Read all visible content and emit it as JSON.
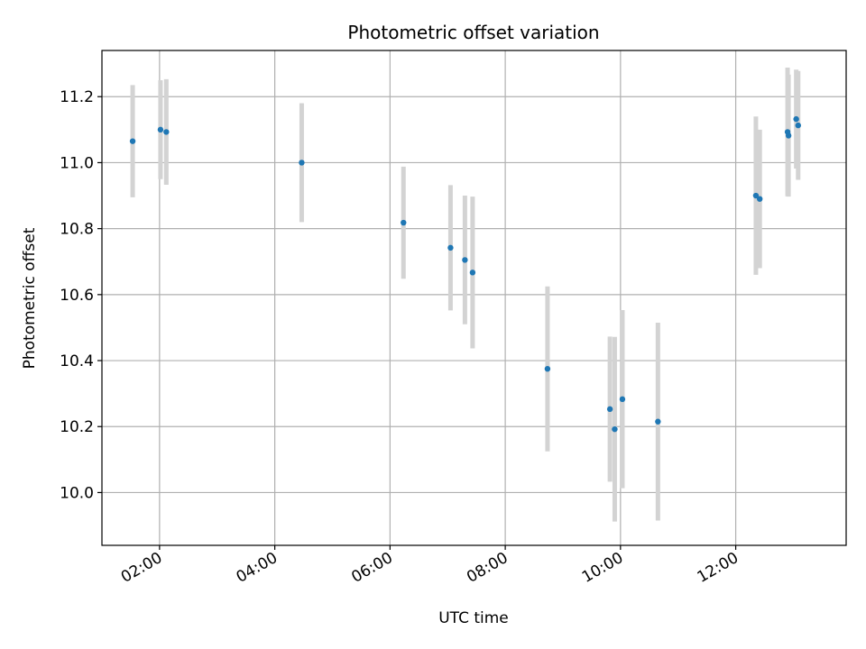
{
  "chart_data": {
    "type": "scatter",
    "title": "Photometric offset variation",
    "xlabel": "UTC time",
    "ylabel": "Photometric offset",
    "xlim": [
      "01:00",
      "13:55"
    ],
    "ylim": [
      9.84,
      11.34
    ],
    "x_ticks": [
      "02:00",
      "04:00",
      "06:00",
      "08:00",
      "10:00",
      "12:00"
    ],
    "y_ticks": [
      "10.0",
      "10.2",
      "10.4",
      "10.6",
      "10.8",
      "11.0",
      "11.2"
    ],
    "grid": true,
    "error_bar_color": "#d3d3d3",
    "marker_color": "#1f77b4",
    "points": [
      {
        "x": "01:32",
        "y": 11.065,
        "err": 0.17
      },
      {
        "x": "02:01",
        "y": 11.1,
        "err": 0.15
      },
      {
        "x": "02:07",
        "y": 11.093,
        "err": 0.16
      },
      {
        "x": "04:28",
        "y": 11.0,
        "err": 0.18
      },
      {
        "x": "06:14",
        "y": 10.818,
        "err": 0.17
      },
      {
        "x": "07:03",
        "y": 10.742,
        "err": 0.19
      },
      {
        "x": "07:18",
        "y": 10.705,
        "err": 0.195
      },
      {
        "x": "07:26",
        "y": 10.667,
        "err": 0.23
      },
      {
        "x": "08:44",
        "y": 10.375,
        "err": 0.25
      },
      {
        "x": "09:49",
        "y": 10.253,
        "err": 0.22
      },
      {
        "x": "09:54",
        "y": 10.192,
        "err": 0.28
      },
      {
        "x": "10:02",
        "y": 10.283,
        "err": 0.27
      },
      {
        "x": "10:39",
        "y": 10.215,
        "err": 0.3
      },
      {
        "x": "12:21",
        "y": 10.9,
        "err": 0.24
      },
      {
        "x": "12:25",
        "y": 10.89,
        "err": 0.21
      },
      {
        "x": "12:54",
        "y": 11.093,
        "err": 0.195
      },
      {
        "x": "12:55",
        "y": 11.082,
        "err": 0.185
      },
      {
        "x": "13:03",
        "y": 11.132,
        "err": 0.15
      },
      {
        "x": "13:05",
        "y": 11.113,
        "err": 0.165
      }
    ]
  }
}
